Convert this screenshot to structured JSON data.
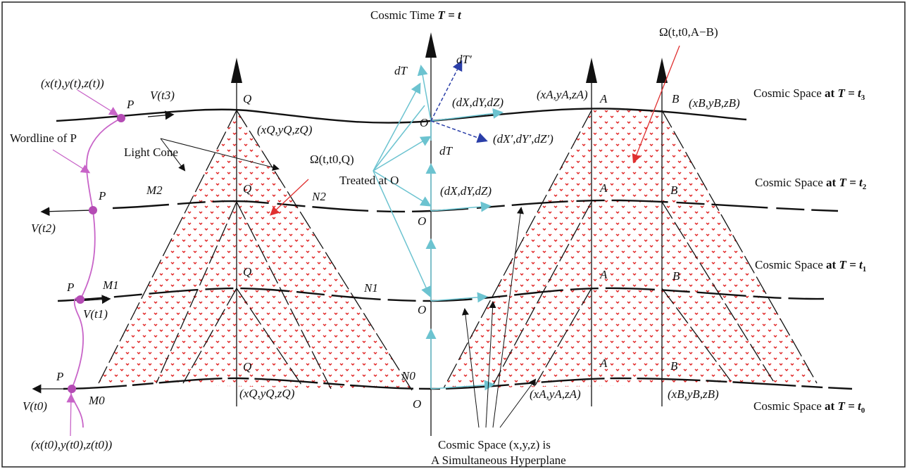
{
  "title": "Cosmic Time T = t",
  "time_axis": {
    "prefix": "Cosmic Time ",
    "var": "T",
    "eq": " = t"
  },
  "spaces": [
    {
      "prefix": "Cosmic Space ",
      "at": "at ",
      "var": "T",
      "eq": " = t",
      "sub": "3"
    },
    {
      "prefix": "Cosmic Space ",
      "at": "at ",
      "var": "T",
      "eq": " = t",
      "sub": "2"
    },
    {
      "prefix": "Cosmic Space ",
      "at": "at ",
      "var": "T",
      "eq": " = t",
      "sub": "1"
    },
    {
      "prefix": "Cosmic Space ",
      "at": "at ",
      "var": "T",
      "eq": " = t",
      "sub": "0"
    }
  ],
  "particle": {
    "label": "P",
    "wordline_label": "Wordline of P",
    "coord_top": "(x(t),y(t),z(t))",
    "coord_bottom": "(x(t0),y(t0),z(t0))",
    "velocities": [
      "V(t3)",
      "V(t2)",
      "V(t1)",
      "V(t0)"
    ]
  },
  "light_cone_label": "Light Cone",
  "cone_Q": {
    "vertex": "Q",
    "coord_top": "(xQ,yQ,zQ)",
    "coord_bottom": "(xQ,yQ,zQ)",
    "omega": "Ω(t,t0,Q)",
    "M_labels": [
      "M2",
      "M1",
      "M0"
    ],
    "N_labels": [
      "N2",
      "N1",
      "N0"
    ]
  },
  "cone_AB": {
    "A": "A",
    "B": "B",
    "coord_A_top": "(xA,yA,zA)",
    "coord_B_top": "(xB,yB,zB)",
    "coord_A_bottom": "(xA,yA,zA)",
    "coord_B_bottom": "(xB,yB,zB)",
    "omega": "Ω(t,t0,A−B)"
  },
  "origin": {
    "label": "O",
    "dT": "dT",
    "dT_prime": "dT′",
    "dXYZ": "(dX,dY,dZ)",
    "dXYZ_prime": "(dX′,dY′,dZ′)",
    "treated": "Treated at O"
  },
  "footer": {
    "line1": "Cosmic Space (x,y,z) is",
    "line2": "A Simultaneous Hyperplane"
  },
  "colors": {
    "line": "#111111",
    "wordline": "#c864c8",
    "dot": "#b44bb4",
    "cyan": "#6cc3d0",
    "blue": "#2a3ea8",
    "red": "#e03030",
    "dots": "#e02020"
  }
}
